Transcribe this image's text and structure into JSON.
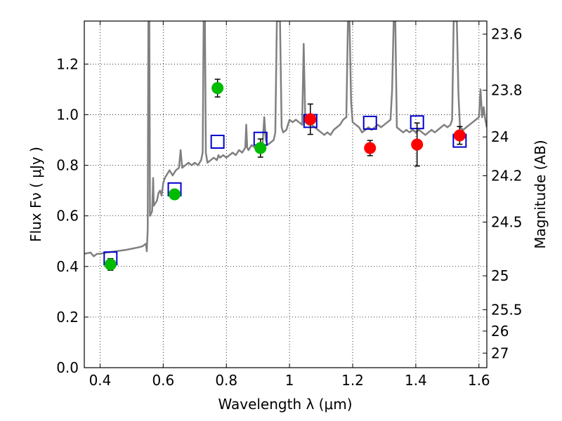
{
  "chart_data": {
    "type": "scatter",
    "xlabel": "Wavelength  λ (μm)",
    "ylabel_left": "Flux  Fν  ( μJy )",
    "ylabel_right": "Magnitude (AB)",
    "xlim": [
      0.35,
      1.625
    ],
    "ylim": [
      0.0,
      1.37
    ],
    "grid": true,
    "x_ticks": [
      {
        "value": 0.4,
        "label": "0.4"
      },
      {
        "value": 0.6,
        "label": "0.6"
      },
      {
        "value": 0.8,
        "label": "0.8"
      },
      {
        "value": 1.0,
        "label": "1"
      },
      {
        "value": 1.2,
        "label": "1.2"
      },
      {
        "value": 1.4,
        "label": "1.4"
      },
      {
        "value": 1.6,
        "label": "1.6"
      }
    ],
    "y_ticks": [
      {
        "value": 0.0,
        "label": "0.0"
      },
      {
        "value": 0.2,
        "label": "0.2"
      },
      {
        "value": 0.4,
        "label": "0.4"
      },
      {
        "value": 0.6,
        "label": "0.6"
      },
      {
        "value": 0.8,
        "label": "0.8"
      },
      {
        "value": 1.0,
        "label": "1.0"
      },
      {
        "value": 1.2,
        "label": "1.2"
      }
    ],
    "right_ticks": [
      {
        "value": 23.6,
        "label": "23.6"
      },
      {
        "value": 23.8,
        "label": "23.8"
      },
      {
        "value": 24.0,
        "label": "24"
      },
      {
        "value": 24.2,
        "label": "24.2"
      },
      {
        "value": 24.5,
        "label": "24.5"
      },
      {
        "value": 25.0,
        "label": "25"
      },
      {
        "value": 25.5,
        "label": "25.5"
      },
      {
        "value": 26.0,
        "label": "26"
      },
      {
        "value": 27.0,
        "label": "27"
      }
    ],
    "series": [
      {
        "role": "template-spectrum",
        "color": "#808080",
        "points": [
          [
            0.35,
            0.45
          ],
          [
            0.37,
            0.455
          ],
          [
            0.38,
            0.44
          ],
          [
            0.39,
            0.45
          ],
          [
            0.4,
            0.45
          ],
          [
            0.42,
            0.455
          ],
          [
            0.45,
            0.46
          ],
          [
            0.48,
            0.465
          ],
          [
            0.5,
            0.47
          ],
          [
            0.52,
            0.475
          ],
          [
            0.535,
            0.48
          ],
          [
            0.545,
            0.49
          ],
          [
            0.548,
            0.46
          ],
          [
            0.551,
            0.55
          ],
          [
            0.553,
            1.37
          ],
          [
            0.556,
            1.37
          ],
          [
            0.558,
            0.6
          ],
          [
            0.562,
            0.61
          ],
          [
            0.565,
            0.62
          ],
          [
            0.568,
            0.75
          ],
          [
            0.57,
            0.64
          ],
          [
            0.575,
            0.65
          ],
          [
            0.58,
            0.66
          ],
          [
            0.585,
            0.69
          ],
          [
            0.59,
            0.7
          ],
          [
            0.595,
            0.68
          ],
          [
            0.6,
            0.73
          ],
          [
            0.605,
            0.75
          ],
          [
            0.61,
            0.76
          ],
          [
            0.62,
            0.78
          ],
          [
            0.63,
            0.76
          ],
          [
            0.64,
            0.78
          ],
          [
            0.65,
            0.79
          ],
          [
            0.655,
            0.86
          ],
          [
            0.66,
            0.79
          ],
          [
            0.67,
            0.8
          ],
          [
            0.68,
            0.81
          ],
          [
            0.69,
            0.8
          ],
          [
            0.7,
            0.81
          ],
          [
            0.71,
            0.8
          ],
          [
            0.72,
            0.82
          ],
          [
            0.725,
            0.85
          ],
          [
            0.728,
            1.37
          ],
          [
            0.732,
            1.37
          ],
          [
            0.735,
            0.85
          ],
          [
            0.74,
            0.81
          ],
          [
            0.75,
            0.82
          ],
          [
            0.76,
            0.83
          ],
          [
            0.77,
            0.82
          ],
          [
            0.775,
            0.84
          ],
          [
            0.78,
            0.83
          ],
          [
            0.79,
            0.84
          ],
          [
            0.8,
            0.83
          ],
          [
            0.81,
            0.84
          ],
          [
            0.82,
            0.85
          ],
          [
            0.83,
            0.84
          ],
          [
            0.84,
            0.86
          ],
          [
            0.85,
            0.85
          ],
          [
            0.86,
            0.87
          ],
          [
            0.863,
            0.96
          ],
          [
            0.866,
            0.87
          ],
          [
            0.87,
            0.86
          ],
          [
            0.88,
            0.88
          ],
          [
            0.89,
            0.87
          ],
          [
            0.9,
            0.88
          ],
          [
            0.91,
            0.87
          ],
          [
            0.915,
            0.89
          ],
          [
            0.92,
            0.99
          ],
          [
            0.925,
            0.9
          ],
          [
            0.93,
            0.88
          ],
          [
            0.94,
            0.89
          ],
          [
            0.95,
            0.9
          ],
          [
            0.955,
            0.93
          ],
          [
            0.96,
            1.37
          ],
          [
            0.966,
            1.37
          ],
          [
            0.97,
            1.37
          ],
          [
            0.975,
            0.95
          ],
          [
            0.98,
            0.93
          ],
          [
            0.99,
            0.94
          ],
          [
            1.0,
            0.98
          ],
          [
            1.01,
            0.97
          ],
          [
            1.02,
            0.98
          ],
          [
            1.03,
            0.97
          ],
          [
            1.04,
            0.96
          ],
          [
            1.045,
            1.28
          ],
          [
            1.05,
            0.97
          ],
          [
            1.06,
            0.96
          ],
          [
            1.07,
            0.96
          ],
          [
            1.08,
            0.95
          ],
          [
            1.09,
            0.94
          ],
          [
            1.1,
            0.93
          ],
          [
            1.11,
            0.92
          ],
          [
            1.12,
            0.93
          ],
          [
            1.13,
            0.92
          ],
          [
            1.14,
            0.94
          ],
          [
            1.15,
            0.95
          ],
          [
            1.16,
            0.96
          ],
          [
            1.17,
            0.98
          ],
          [
            1.18,
            0.99
          ],
          [
            1.185,
            1.37
          ],
          [
            1.19,
            1.37
          ],
          [
            1.195,
            1.05
          ],
          [
            1.2,
            0.97
          ],
          [
            1.21,
            0.96
          ],
          [
            1.22,
            0.95
          ],
          [
            1.23,
            0.93
          ],
          [
            1.24,
            0.94
          ],
          [
            1.25,
            0.95
          ],
          [
            1.26,
            0.94
          ],
          [
            1.27,
            0.95
          ],
          [
            1.28,
            0.96
          ],
          [
            1.29,
            0.95
          ],
          [
            1.3,
            0.96
          ],
          [
            1.31,
            0.97
          ],
          [
            1.32,
            0.98
          ],
          [
            1.325,
            1.1
          ],
          [
            1.33,
            1.37
          ],
          [
            1.335,
            1.37
          ],
          [
            1.34,
            0.95
          ],
          [
            1.35,
            0.94
          ],
          [
            1.36,
            0.93
          ],
          [
            1.37,
            0.94
          ],
          [
            1.38,
            0.93
          ],
          [
            1.39,
            0.94
          ],
          [
            1.4,
            0.93
          ],
          [
            1.41,
            0.94
          ],
          [
            1.42,
            0.93
          ],
          [
            1.43,
            0.92
          ],
          [
            1.44,
            0.93
          ],
          [
            1.45,
            0.94
          ],
          [
            1.46,
            0.93
          ],
          [
            1.47,
            0.94
          ],
          [
            1.48,
            0.95
          ],
          [
            1.49,
            0.96
          ],
          [
            1.5,
            0.95
          ],
          [
            1.51,
            0.96
          ],
          [
            1.515,
            0.98
          ],
          [
            1.52,
            1.37
          ],
          [
            1.53,
            1.37
          ],
          [
            1.535,
            1.08
          ],
          [
            1.54,
            0.95
          ],
          [
            1.55,
            0.94
          ],
          [
            1.56,
            0.95
          ],
          [
            1.57,
            0.96
          ],
          [
            1.58,
            0.97
          ],
          [
            1.59,
            0.98
          ],
          [
            1.6,
            0.99
          ],
          [
            1.605,
            1.1
          ],
          [
            1.61,
            0.99
          ],
          [
            1.615,
            1.03
          ],
          [
            1.62,
            0.98
          ],
          [
            1.625,
            0.95
          ]
        ]
      },
      {
        "role": "model-photometry",
        "marker": "open-square",
        "color": "#0000cc",
        "points": [
          [
            0.433,
            0.432
          ],
          [
            0.636,
            0.705
          ],
          [
            0.772,
            0.893
          ],
          [
            0.908,
            0.905
          ],
          [
            1.066,
            0.975
          ],
          [
            1.255,
            0.968
          ],
          [
            1.404,
            0.97
          ],
          [
            1.539,
            0.897
          ]
        ]
      },
      {
        "role": "observed-green",
        "marker": "filled-circle",
        "color": "#00bb00",
        "points": [
          {
            "x": 0.433,
            "y": 0.408,
            "err": 0.023
          },
          {
            "x": 0.636,
            "y": 0.685,
            "err": 0.017
          },
          {
            "x": 0.772,
            "y": 1.105,
            "err": 0.035
          },
          {
            "x": 0.908,
            "y": 0.868,
            "err": 0.036
          }
        ]
      },
      {
        "role": "observed-red",
        "marker": "filled-circle",
        "color": "#ff0000",
        "points": [
          {
            "x": 1.066,
            "y": 0.982,
            "err": 0.06
          },
          {
            "x": 1.255,
            "y": 0.868,
            "err": 0.03
          },
          {
            "x": 1.404,
            "y": 0.882,
            "err": 0.085
          },
          {
            "x": 1.539,
            "y": 0.918,
            "err": 0.035
          }
        ]
      }
    ]
  }
}
